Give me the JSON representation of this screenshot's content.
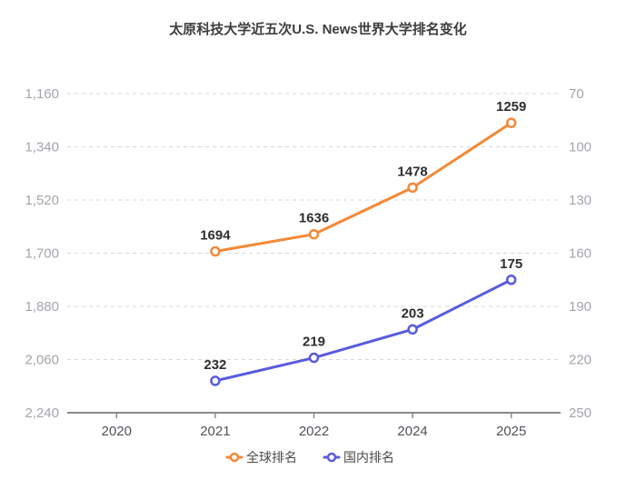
{
  "title": "太原科技大学近五次U.S. News世界大学排名变化",
  "chart_data": {
    "type": "line",
    "categories": [
      "2020",
      "2021",
      "2022",
      "2024",
      "2025"
    ],
    "series": [
      {
        "name": "全球排名",
        "yAxis": "left",
        "color": "#f58836",
        "values": [
          null,
          1694,
          1636,
          1478,
          1259
        ]
      },
      {
        "name": "国内排名",
        "yAxis": "right",
        "color": "#5a5bde",
        "values": [
          null,
          232,
          219,
          203,
          175
        ]
      }
    ],
    "left_axis": {
      "min": 1160,
      "max": 2240,
      "step": 180,
      "inverted": true,
      "tick_labels": [
        "1,160",
        "1,340",
        "1,520",
        "1,700",
        "1,880",
        "2,060",
        "2,240"
      ]
    },
    "right_axis": {
      "min": 70,
      "max": 250,
      "step": 30,
      "inverted": true,
      "tick_labels": [
        "70",
        "100",
        "130",
        "160",
        "190",
        "220",
        "250"
      ]
    },
    "grid": true,
    "grid_style": "dashed",
    "legend_position": "bottom",
    "title": "太原科技大学近五次U.S. News世界大学排名变化"
  },
  "legend": {
    "items": [
      {
        "label": "全球排名",
        "color": "#f58836"
      },
      {
        "label": "国内排名",
        "color": "#5a5bde"
      }
    ]
  },
  "colors": {
    "global_series": "#f58836",
    "domestic_series": "#5a5bde",
    "gridline": "#d9d9d9",
    "axis_line": "#8a8a8a",
    "y_tick_label": "#a2a5ac",
    "x_tick_label": "#4f5358",
    "value_label": "#2e2e2e",
    "title": "#3d3d3d",
    "background": "#ffffff"
  }
}
